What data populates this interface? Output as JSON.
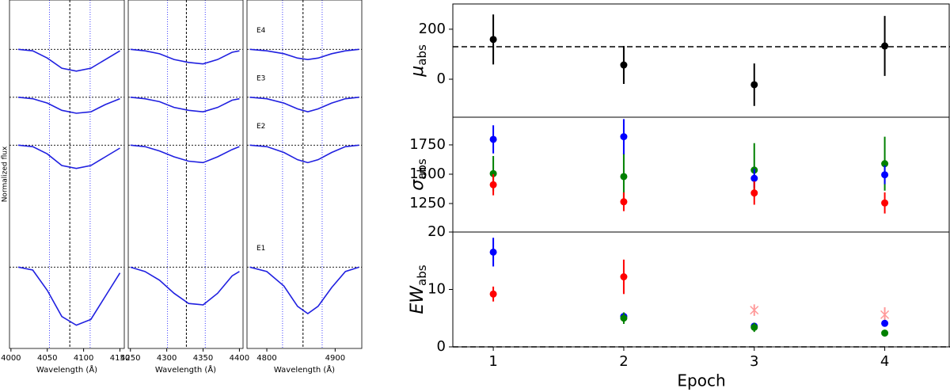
{
  "chart_data": [
    {
      "type": "spectrum",
      "ylabel": "Normalized flux",
      "xlabel": "Wavelength (Å)",
      "xlim": [
        3998,
        4156
      ],
      "ylim": [
        0.44,
        2.84
      ],
      "xticks": [
        4000,
        4050,
        4100,
        4150
      ],
      "hlines": [
        1.0,
        1.84,
        2.17,
        2.5
      ],
      "center_line": 4081,
      "window_lines": [
        4053,
        4109
      ],
      "x": [
        4010,
        4030,
        4050,
        4070,
        4090,
        4110,
        4130,
        4150
      ],
      "series": [
        {
          "color": "#2020e0",
          "values": [
            1.0,
            0.98,
            0.84,
            0.66,
            0.6,
            0.64,
            0.8,
            0.96
          ]
        },
        {
          "color": "#2020e0",
          "values": [
            1.84,
            1.83,
            1.78,
            1.7,
            1.68,
            1.7,
            1.76,
            1.82
          ]
        },
        {
          "color": "#2020e0",
          "values": [
            2.17,
            2.16,
            2.13,
            2.08,
            2.06,
            2.07,
            2.12,
            2.16
          ]
        },
        {
          "color": "#2020e0",
          "values": [
            2.5,
            2.49,
            2.44,
            2.37,
            2.35,
            2.37,
            2.43,
            2.49
          ]
        }
      ]
    },
    {
      "type": "spectrum",
      "xlabel": "Wavelength (Å)",
      "xlim": [
        4247,
        4405
      ],
      "ylim": [
        0.44,
        2.84
      ],
      "xticks": [
        4250,
        4300,
        4350,
        4400
      ],
      "hlines": [
        1.0,
        1.84,
        2.17,
        2.5
      ],
      "center_line": 4327,
      "window_lines": [
        4301,
        4353
      ],
      "x": [
        4250,
        4270,
        4290,
        4310,
        4330,
        4350,
        4370,
        4390,
        4400
      ],
      "series": [
        {
          "color": "#2020e0",
          "values": [
            1.0,
            0.97,
            0.91,
            0.82,
            0.75,
            0.74,
            0.82,
            0.94,
            0.97
          ]
        },
        {
          "color": "#2020e0",
          "values": [
            1.84,
            1.83,
            1.8,
            1.76,
            1.73,
            1.72,
            1.76,
            1.81,
            1.83
          ]
        },
        {
          "color": "#2020e0",
          "values": [
            2.17,
            2.16,
            2.14,
            2.1,
            2.08,
            2.07,
            2.1,
            2.15,
            2.16
          ]
        },
        {
          "color": "#2020e0",
          "values": [
            2.5,
            2.49,
            2.47,
            2.43,
            2.41,
            2.4,
            2.43,
            2.48,
            2.49
          ]
        }
      ]
    },
    {
      "type": "spectrum",
      "xlabel": "Wavelength (Å)",
      "xlim": [
        4771,
        4939
      ],
      "ylim": [
        0.44,
        2.84
      ],
      "xticks": [
        4800,
        4900
      ],
      "hlines": [
        1.0,
        1.84,
        2.17,
        2.5
      ],
      "center_line": 4853,
      "window_lines": [
        4823,
        4881
      ],
      "x": [
        4775,
        4800,
        4825,
        4845,
        4860,
        4875,
        4895,
        4915,
        4935
      ],
      "series": [
        {
          "name": "E1",
          "color": "#2020e0",
          "values": [
            1.0,
            0.97,
            0.87,
            0.73,
            0.68,
            0.73,
            0.86,
            0.97,
            1.0
          ]
        },
        {
          "name": "E2",
          "color": "#2020e0",
          "values": [
            1.84,
            1.83,
            1.79,
            1.74,
            1.72,
            1.74,
            1.79,
            1.83,
            1.84
          ]
        },
        {
          "name": "E3",
          "color": "#2020e0",
          "values": [
            2.17,
            2.16,
            2.13,
            2.09,
            2.07,
            2.09,
            2.13,
            2.16,
            2.17
          ]
        },
        {
          "name": "E4",
          "color": "#2020e0",
          "values": [
            2.5,
            2.49,
            2.47,
            2.44,
            2.43,
            2.44,
            2.47,
            2.49,
            2.5
          ]
        }
      ]
    },
    {
      "type": "errorbar",
      "ylabel": "μ",
      "ylabel_sub": "abs",
      "xlim": [
        0.69,
        4.5
      ],
      "ylim": [
        -152,
        301
      ],
      "yticks": [
        0,
        200
      ],
      "hline": 130,
      "x": [
        1,
        2,
        3,
        4
      ],
      "series": [
        {
          "color": "#000000",
          "values": [
            159,
            57,
            -22,
            133
          ],
          "errors": [
            100,
            76,
            85,
            120
          ]
        }
      ]
    },
    {
      "type": "errorbar",
      "ylabel": "σ",
      "ylabel_sub": "abs",
      "xlim": [
        0.69,
        4.5
      ],
      "ylim": [
        1007,
        1986
      ],
      "yticks": [
        {
          "value": 1250,
          "label": "1250"
        },
        1500,
        1750
      ],
      "x": [
        1,
        2,
        3,
        4
      ],
      "series": [
        {
          "color": "#008000",
          "values": [
            1505,
            1480,
            1535,
            1590
          ],
          "errors": [
            150,
            200,
            230,
            230
          ]
        },
        {
          "color": "#0000ff",
          "values": [
            1797,
            1820,
            1465,
            1495
          ],
          "errors": [
            120,
            150,
            80,
            80
          ]
        },
        {
          "color": "#ff0000",
          "values": [
            1410,
            1265,
            1340,
            1255
          ],
          "errors": [
            90,
            80,
            100,
            90
          ]
        }
      ]
    },
    {
      "type": "errorbar",
      "ylabel": "EW",
      "ylabel_sub": "abs",
      "xlabel": "Epoch",
      "xlim": [
        0.69,
        4.5
      ],
      "ylim": [
        0,
        20
      ],
      "yticks": [
        0,
        10,
        20
      ],
      "xticks": [
        1,
        2,
        3,
        4
      ],
      "hline": 0,
      "x": [
        1,
        2,
        3,
        4
      ],
      "series": [
        {
          "color": "#ff9999",
          "marker": "x",
          "values": [
            null,
            null,
            6.4,
            5.6
          ],
          "errors": [
            null,
            null,
            1.0,
            1.3
          ]
        },
        {
          "color": "#0000ff",
          "values": [
            16.5,
            5.3,
            3.6,
            4.1
          ],
          "errors": [
            2.5,
            0.4,
            0.3,
            0.3
          ]
        },
        {
          "color": "#ff0000",
          "values": [
            9.2,
            12.2,
            null,
            null
          ],
          "errors": [
            1.3,
            3.0,
            null,
            null
          ]
        },
        {
          "color": "#008000",
          "values": [
            null,
            5.0,
            3.4,
            2.4
          ],
          "errors": [
            null,
            1.0,
            0.8,
            0.3
          ]
        }
      ]
    }
  ]
}
